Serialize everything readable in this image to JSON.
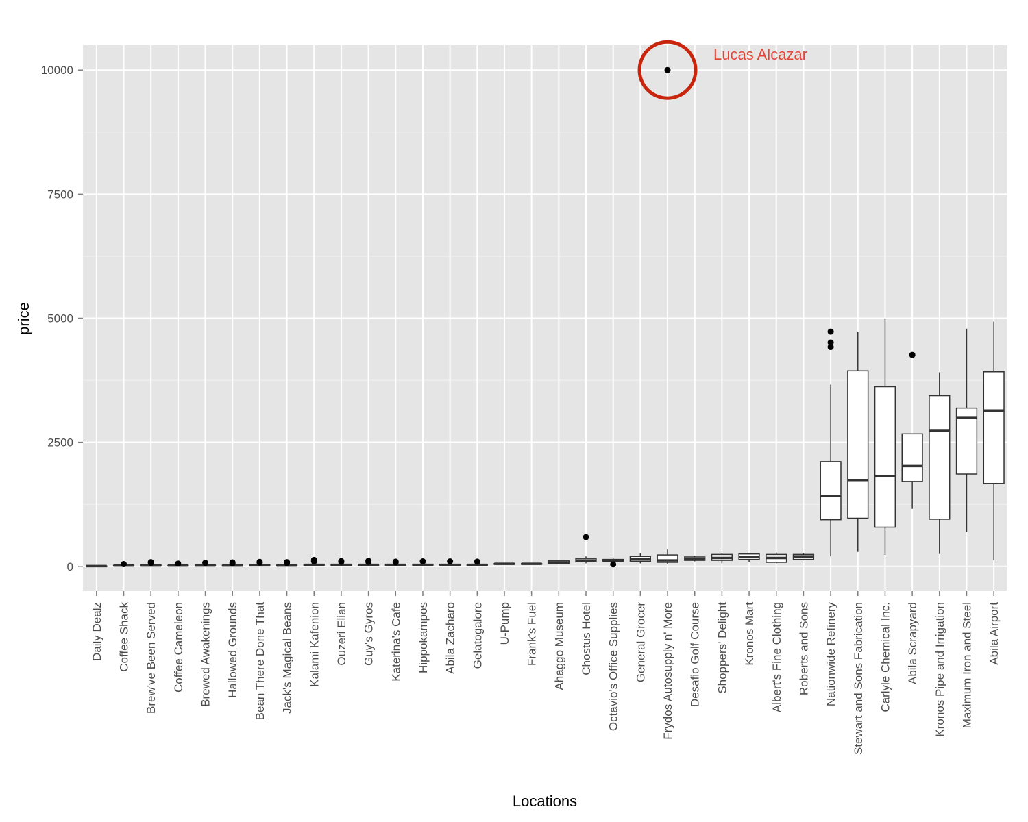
{
  "chart_data": {
    "type": "boxplot",
    "xlabel": "Locations",
    "ylabel": "price",
    "y_ticks": [
      0,
      2500,
      5000,
      7500,
      10000
    ],
    "ylim": [
      -500,
      10500
    ],
    "grid": true,
    "colors": {
      "panel": "#e5e5e5",
      "grid": "#ffffff",
      "box_fill": "#ffffff",
      "box_stroke": "#333333",
      "point": "#000000",
      "annotation": "#e0473a",
      "circle": "#c8250c"
    },
    "annotation": {
      "text": "Lucas Alcazar",
      "location": "Frydos Autosupply n' More",
      "value": 10000
    },
    "categories": [
      "Daily Dealz",
      "Coffee Shack",
      "Brew've Been Served",
      "Coffee Cameleon",
      "Brewed Awakenings",
      "Hallowed Grounds",
      "Bean There Done That",
      "Jack's Magical Beans",
      "Kalami Kafenion",
      "Ouzeri Elian",
      "Guy's Gyros",
      "Katerina's Cafe",
      "Hippokampos",
      "Abila Zacharo",
      "Gelatogalore",
      "U-Pump",
      "Frank's Fuel",
      "Ahaggo Museum",
      "Chostus Hotel",
      "Octavio's Office Supplies",
      "General Grocer",
      "Frydos Autosupply n' More",
      "Desafio Golf Course",
      "Shoppers' Delight",
      "Kronos Mart",
      "Albert's Fine Clothing",
      "Roberts and Sons",
      "Nationwide Refinery",
      "Stewart and Sons Fabrication",
      "Carlyle Chemical Inc.",
      "Abila Scrapyard",
      "Kronos Pipe and Irrigation",
      "Maximum Iron and Steel",
      "Abila Airport"
    ],
    "boxes": [
      {
        "min": 2,
        "q1": 3,
        "median": 5,
        "q3": 7,
        "max": 10,
        "outliers": []
      },
      {
        "min": 5,
        "q1": 10,
        "median": 15,
        "q3": 20,
        "max": 30,
        "outliers": [
          45
        ]
      },
      {
        "min": 5,
        "q1": 10,
        "median": 15,
        "q3": 25,
        "max": 40,
        "outliers": [
          70,
          85
        ]
      },
      {
        "min": 5,
        "q1": 10,
        "median": 15,
        "q3": 20,
        "max": 30,
        "outliers": [
          55
        ]
      },
      {
        "min": 5,
        "q1": 10,
        "median": 15,
        "q3": 25,
        "max": 35,
        "outliers": [
          70
        ]
      },
      {
        "min": 5,
        "q1": 10,
        "median": 15,
        "q3": 20,
        "max": 30,
        "outliers": [
          60,
          80
        ]
      },
      {
        "min": 5,
        "q1": 10,
        "median": 20,
        "q3": 30,
        "max": 45,
        "outliers": [
          75,
          90
        ]
      },
      {
        "min": 5,
        "q1": 10,
        "median": 15,
        "q3": 25,
        "max": 40,
        "outliers": [
          70,
          85
        ]
      },
      {
        "min": 10,
        "q1": 20,
        "median": 30,
        "q3": 40,
        "max": 60,
        "outliers": [
          100,
          130
        ]
      },
      {
        "min": 10,
        "q1": 20,
        "median": 30,
        "q3": 40,
        "max": 55,
        "outliers": [
          90,
          105
        ]
      },
      {
        "min": 10,
        "q1": 20,
        "median": 30,
        "q3": 40,
        "max": 55,
        "outliers": [
          90,
          110
        ]
      },
      {
        "min": 10,
        "q1": 20,
        "median": 30,
        "q3": 40,
        "max": 55,
        "outliers": [
          80,
          95
        ]
      },
      {
        "min": 10,
        "q1": 20,
        "median": 30,
        "q3": 40,
        "max": 55,
        "outliers": [
          100
        ]
      },
      {
        "min": 10,
        "q1": 20,
        "median": 30,
        "q3": 40,
        "max": 55,
        "outliers": [
          100
        ]
      },
      {
        "min": 10,
        "q1": 20,
        "median": 30,
        "q3": 40,
        "max": 55,
        "outliers": [
          95
        ]
      },
      {
        "min": 40,
        "q1": 45,
        "median": 50,
        "q3": 55,
        "max": 60,
        "outliers": []
      },
      {
        "min": 40,
        "q1": 45,
        "median": 50,
        "q3": 55,
        "max": 60,
        "outliers": []
      },
      {
        "min": 50,
        "q1": 60,
        "median": 75,
        "q3": 110,
        "max": 120,
        "outliers": []
      },
      {
        "min": 60,
        "q1": 90,
        "median": 120,
        "q3": 160,
        "max": 200,
        "outliers": [
          590
        ]
      },
      {
        "min": 80,
        "q1": 100,
        "median": 120,
        "q3": 140,
        "max": 160,
        "outliers": [
          40
        ]
      },
      {
        "min": 60,
        "q1": 100,
        "median": 140,
        "q3": 200,
        "max": 260,
        "outliers": []
      },
      {
        "min": 50,
        "q1": 80,
        "median": 120,
        "q3": 230,
        "max": 340,
        "outliers": [
          10000
        ]
      },
      {
        "min": 100,
        "q1": 120,
        "median": 150,
        "q3": 190,
        "max": 210,
        "outliers": []
      },
      {
        "min": 60,
        "q1": 120,
        "median": 170,
        "q3": 240,
        "max": 270,
        "outliers": []
      },
      {
        "min": 80,
        "q1": 140,
        "median": 190,
        "q3": 250,
        "max": 270,
        "outliers": []
      },
      {
        "min": 60,
        "q1": 80,
        "median": 170,
        "q3": 240,
        "max": 280,
        "outliers": []
      },
      {
        "min": 120,
        "q1": 140,
        "median": 200,
        "q3": 240,
        "max": 270,
        "outliers": []
      },
      {
        "min": 200,
        "q1": 940,
        "median": 1420,
        "q3": 2110,
        "max": 3660,
        "outliers": [
          4420,
          4510,
          4730
        ]
      },
      {
        "min": 290,
        "q1": 970,
        "median": 1740,
        "q3": 3940,
        "max": 4730,
        "outliers": []
      },
      {
        "min": 230,
        "q1": 790,
        "median": 1820,
        "q3": 3620,
        "max": 4980,
        "outliers": []
      },
      {
        "min": 1160,
        "q1": 1710,
        "median": 2020,
        "q3": 2670,
        "max": 2670,
        "outliers": [
          4260
        ]
      },
      {
        "min": 250,
        "q1": 950,
        "median": 2730,
        "q3": 3440,
        "max": 3910,
        "outliers": []
      },
      {
        "min": 690,
        "q1": 1860,
        "median": 2990,
        "q3": 3190,
        "max": 4790,
        "outliers": []
      },
      {
        "min": 120,
        "q1": 1670,
        "median": 3140,
        "q3": 3920,
        "max": 4930,
        "outliers": []
      }
    ]
  }
}
